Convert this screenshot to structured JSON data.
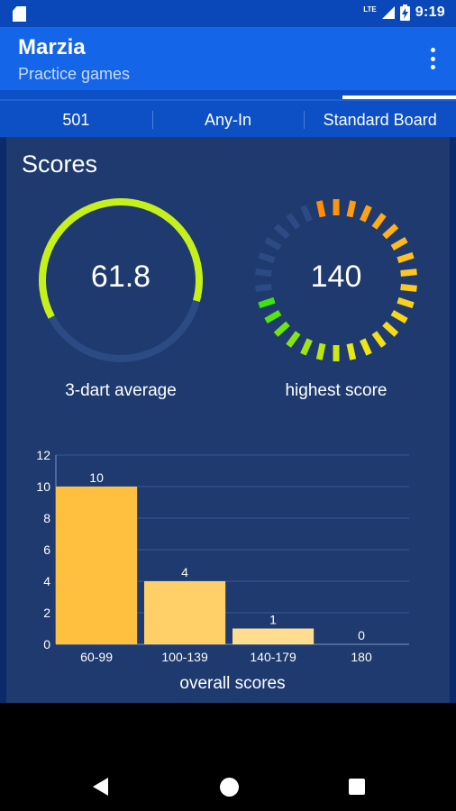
{
  "status_bar": {
    "network": "LTE",
    "time": "9:19",
    "icons": [
      "sd-card-icon",
      "signal-icon",
      "battery-charging-icon"
    ]
  },
  "app_bar": {
    "title": "Marzia",
    "subtitle": "Practice games",
    "menu_icon": "more-vert-icon"
  },
  "tabs": [
    {
      "label": "501"
    },
    {
      "label": "Any-In"
    },
    {
      "label": "Standard Board"
    }
  ],
  "scores": {
    "title": "Scores",
    "average": {
      "value": "61.8",
      "label": "3-dart average",
      "fraction": 0.62,
      "color": "#c6f01a"
    },
    "highest": {
      "value": "140",
      "label": "highest score",
      "segments_total": 30,
      "segments_lit": 23
    }
  },
  "chart_data": {
    "type": "bar",
    "categories": [
      "60-99",
      "100-139",
      "140-179",
      "180"
    ],
    "values": [
      10,
      4,
      1,
      0
    ],
    "value_labels": [
      "10",
      "4",
      "1",
      "0"
    ],
    "colors": [
      "#ffbf3f",
      "#ffcf68",
      "#ffdc8e",
      "#ffe4a8"
    ],
    "yticks": [
      "0",
      "2",
      "4",
      "6",
      "8",
      "10",
      "12"
    ],
    "ylim": [
      0,
      12
    ],
    "xlabel": "overall scores",
    "grid": true
  },
  "colors": {
    "status_bar": "#0a47b8",
    "app_bar": "#1565e8",
    "tab_strip": "#0d4fc4",
    "card_bg": "#1e3a6e"
  },
  "nav": {
    "back_icon": "back-triangle-icon",
    "home_icon": "home-circle-icon",
    "recents_icon": "recents-square-icon"
  }
}
